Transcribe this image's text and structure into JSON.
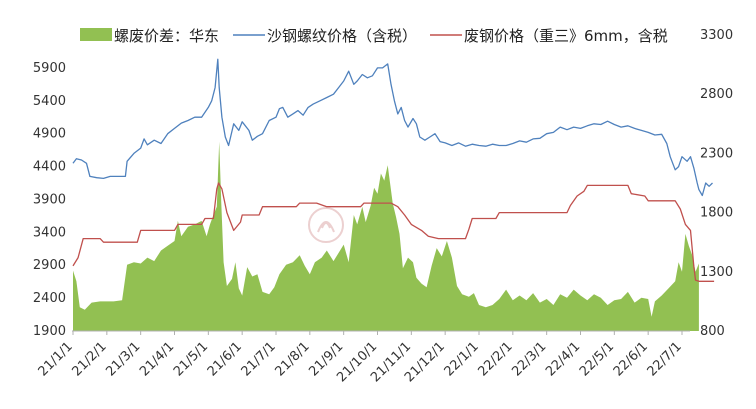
{
  "chart_data": {
    "type": "line",
    "legend_position": "top",
    "grid": false,
    "watermark": "资讯",
    "x_ticks": [
      "21/1/1",
      "21/2/1",
      "21/3/1",
      "21/4/1",
      "21/5/1",
      "21/6/1",
      "21/7/1",
      "21/8/1",
      "21/9/1",
      "21/10/1",
      "21/11/1",
      "21/12/1",
      "22/1/1",
      "22/2/1",
      "22/3/1",
      "22/4/1",
      "22/5/1",
      "22/6/1",
      "22/7/1"
    ],
    "y_left": {
      "range": [
        1900,
        6400
      ],
      "ticks": [
        1900,
        2400,
        2900,
        3400,
        3900,
        4400,
        4900,
        5400,
        5900
      ]
    },
    "y_right": {
      "range": [
        800,
        3300
      ],
      "ticks": [
        800,
        1300,
        1800,
        2300,
        2800,
        3300
      ]
    },
    "series": [
      {
        "name": "螺废价差：华东",
        "kind": "area",
        "axis": "right",
        "color": "#92c052",
        "points": [
          [
            0.0,
            1310
          ],
          [
            0.1,
            1220
          ],
          [
            0.2,
            1000
          ],
          [
            0.35,
            980
          ],
          [
            0.55,
            1040
          ],
          [
            0.8,
            1050
          ],
          [
            1.0,
            1050
          ],
          [
            1.2,
            1050
          ],
          [
            1.45,
            1060
          ],
          [
            1.6,
            1360
          ],
          [
            1.8,
            1380
          ],
          [
            2.0,
            1370
          ],
          [
            2.2,
            1420
          ],
          [
            2.4,
            1390
          ],
          [
            2.6,
            1480
          ],
          [
            2.8,
            1520
          ],
          [
            3.0,
            1560
          ],
          [
            3.1,
            1730
          ],
          [
            3.2,
            1600
          ],
          [
            3.4,
            1680
          ],
          [
            3.6,
            1700
          ],
          [
            3.8,
            1730
          ],
          [
            3.95,
            1600
          ],
          [
            4.05,
            1700
          ],
          [
            4.15,
            1780
          ],
          [
            4.25,
            1850
          ],
          [
            4.32,
            2400
          ],
          [
            4.38,
            1900
          ],
          [
            4.45,
            1380
          ],
          [
            4.55,
            1180
          ],
          [
            4.7,
            1240
          ],
          [
            4.8,
            1380
          ],
          [
            4.9,
            1160
          ],
          [
            5.0,
            1100
          ],
          [
            5.15,
            1340
          ],
          [
            5.3,
            1260
          ],
          [
            5.45,
            1280
          ],
          [
            5.6,
            1130
          ],
          [
            5.8,
            1110
          ],
          [
            5.95,
            1170
          ],
          [
            6.1,
            1280
          ],
          [
            6.3,
            1360
          ],
          [
            6.5,
            1380
          ],
          [
            6.7,
            1440
          ],
          [
            6.85,
            1350
          ],
          [
            7.0,
            1280
          ],
          [
            7.15,
            1380
          ],
          [
            7.35,
            1420
          ],
          [
            7.5,
            1480
          ],
          [
            7.7,
            1390
          ],
          [
            7.85,
            1460
          ],
          [
            8.0,
            1530
          ],
          [
            8.15,
            1380
          ],
          [
            8.3,
            1780
          ],
          [
            8.4,
            1700
          ],
          [
            8.55,
            1850
          ],
          [
            8.65,
            1720
          ],
          [
            8.8,
            1860
          ],
          [
            8.9,
            2010
          ],
          [
            9.0,
            1960
          ],
          [
            9.1,
            2130
          ],
          [
            9.2,
            2070
          ],
          [
            9.3,
            2200
          ],
          [
            9.45,
            1880
          ],
          [
            9.55,
            1760
          ],
          [
            9.65,
            1620
          ],
          [
            9.75,
            1330
          ],
          [
            9.9,
            1420
          ],
          [
            10.05,
            1380
          ],
          [
            10.15,
            1250
          ],
          [
            10.3,
            1200
          ],
          [
            10.45,
            1170
          ],
          [
            10.6,
            1350
          ],
          [
            10.75,
            1500
          ],
          [
            10.9,
            1430
          ],
          [
            11.05,
            1560
          ],
          [
            11.2,
            1420
          ],
          [
            11.35,
            1180
          ],
          [
            11.5,
            1110
          ],
          [
            11.7,
            1090
          ],
          [
            11.85,
            1120
          ],
          [
            12.0,
            1020
          ],
          [
            12.2,
            1000
          ],
          [
            12.4,
            1020
          ],
          [
            12.6,
            1070
          ],
          [
            12.8,
            1150
          ],
          [
            13.0,
            1060
          ],
          [
            13.2,
            1100
          ],
          [
            13.4,
            1060
          ],
          [
            13.6,
            1120
          ],
          [
            13.8,
            1040
          ],
          [
            14.0,
            1070
          ],
          [
            14.2,
            1020
          ],
          [
            14.4,
            1110
          ],
          [
            14.6,
            1080
          ],
          [
            14.8,
            1150
          ],
          [
            15.0,
            1100
          ],
          [
            15.2,
            1060
          ],
          [
            15.4,
            1110
          ],
          [
            15.6,
            1080
          ],
          [
            15.8,
            1020
          ],
          [
            16.0,
            1060
          ],
          [
            16.2,
            1070
          ],
          [
            16.4,
            1130
          ],
          [
            16.6,
            1040
          ],
          [
            16.8,
            1080
          ],
          [
            17.0,
            1070
          ],
          [
            17.1,
            920
          ],
          [
            17.2,
            1050
          ],
          [
            17.4,
            1100
          ],
          [
            17.6,
            1160
          ],
          [
            17.8,
            1220
          ],
          [
            17.9,
            1380
          ],
          [
            18.0,
            1300
          ],
          [
            18.1,
            1620
          ],
          [
            18.2,
            1520
          ],
          [
            18.3,
            1440
          ],
          [
            18.4,
            1300
          ],
          [
            18.5,
            1370
          ]
        ]
      },
      {
        "name": "沙钢螺纹价格（含税）",
        "kind": "line",
        "axis": "left",
        "color": "#4f81bd",
        "points": [
          [
            0.0,
            4450
          ],
          [
            0.1,
            4520
          ],
          [
            0.25,
            4500
          ],
          [
            0.4,
            4450
          ],
          [
            0.5,
            4250
          ],
          [
            0.7,
            4230
          ],
          [
            0.9,
            4220
          ],
          [
            1.1,
            4250
          ],
          [
            1.3,
            4250
          ],
          [
            1.55,
            4250
          ],
          [
            1.6,
            4480
          ],
          [
            1.8,
            4600
          ],
          [
            2.0,
            4680
          ],
          [
            2.1,
            4820
          ],
          [
            2.2,
            4730
          ],
          [
            2.4,
            4800
          ],
          [
            2.6,
            4750
          ],
          [
            2.8,
            4900
          ],
          [
            3.0,
            4980
          ],
          [
            3.2,
            5060
          ],
          [
            3.4,
            5100
          ],
          [
            3.6,
            5150
          ],
          [
            3.8,
            5150
          ],
          [
            4.0,
            5300
          ],
          [
            4.1,
            5400
          ],
          [
            4.2,
            5600
          ],
          [
            4.28,
            6030
          ],
          [
            4.32,
            5600
          ],
          [
            4.4,
            5150
          ],
          [
            4.5,
            4850
          ],
          [
            4.6,
            4720
          ],
          [
            4.75,
            5050
          ],
          [
            4.9,
            4950
          ],
          [
            5.0,
            5080
          ],
          [
            5.2,
            4950
          ],
          [
            5.3,
            4800
          ],
          [
            5.45,
            4860
          ],
          [
            5.6,
            4900
          ],
          [
            5.8,
            5100
          ],
          [
            6.0,
            5150
          ],
          [
            6.1,
            5280
          ],
          [
            6.2,
            5300
          ],
          [
            6.35,
            5150
          ],
          [
            6.5,
            5200
          ],
          [
            6.65,
            5250
          ],
          [
            6.8,
            5180
          ],
          [
            6.95,
            5300
          ],
          [
            7.1,
            5350
          ],
          [
            7.3,
            5400
          ],
          [
            7.5,
            5450
          ],
          [
            7.7,
            5500
          ],
          [
            7.85,
            5600
          ],
          [
            8.0,
            5700
          ],
          [
            8.15,
            5850
          ],
          [
            8.3,
            5650
          ],
          [
            8.4,
            5700
          ],
          [
            8.55,
            5800
          ],
          [
            8.7,
            5750
          ],
          [
            8.85,
            5780
          ],
          [
            9.0,
            5900
          ],
          [
            9.15,
            5900
          ],
          [
            9.3,
            5960
          ],
          [
            9.4,
            5650
          ],
          [
            9.5,
            5400
          ],
          [
            9.6,
            5200
          ],
          [
            9.7,
            5300
          ],
          [
            9.8,
            5100
          ],
          [
            9.9,
            5000
          ],
          [
            10.05,
            5130
          ],
          [
            10.15,
            5050
          ],
          [
            10.25,
            4850
          ],
          [
            10.4,
            4800
          ],
          [
            10.55,
            4850
          ],
          [
            10.7,
            4900
          ],
          [
            10.85,
            4780
          ],
          [
            11.0,
            4760
          ],
          [
            11.2,
            4720
          ],
          [
            11.4,
            4760
          ],
          [
            11.6,
            4710
          ],
          [
            11.8,
            4740
          ],
          [
            12.0,
            4720
          ],
          [
            12.2,
            4710
          ],
          [
            12.4,
            4740
          ],
          [
            12.6,
            4720
          ],
          [
            12.8,
            4720
          ],
          [
            13.0,
            4750
          ],
          [
            13.2,
            4790
          ],
          [
            13.4,
            4770
          ],
          [
            13.6,
            4820
          ],
          [
            13.8,
            4830
          ],
          [
            14.0,
            4900
          ],
          [
            14.2,
            4920
          ],
          [
            14.4,
            5000
          ],
          [
            14.6,
            4960
          ],
          [
            14.8,
            5000
          ],
          [
            15.0,
            4980
          ],
          [
            15.2,
            5020
          ],
          [
            15.4,
            5050
          ],
          [
            15.6,
            5040
          ],
          [
            15.8,
            5090
          ],
          [
            16.0,
            5040
          ],
          [
            16.2,
            5000
          ],
          [
            16.4,
            5020
          ],
          [
            16.6,
            4980
          ],
          [
            16.8,
            4950
          ],
          [
            17.0,
            4920
          ],
          [
            17.2,
            4880
          ],
          [
            17.4,
            4890
          ],
          [
            17.55,
            4750
          ],
          [
            17.65,
            4550
          ],
          [
            17.8,
            4350
          ],
          [
            17.9,
            4400
          ],
          [
            18.0,
            4550
          ],
          [
            18.15,
            4480
          ],
          [
            18.25,
            4550
          ],
          [
            18.35,
            4380
          ],
          [
            18.45,
            4150
          ],
          [
            18.5,
            4050
          ],
          [
            18.6,
            3960
          ],
          [
            18.7,
            4150
          ],
          [
            18.8,
            4100
          ],
          [
            18.9,
            4150
          ]
        ]
      },
      {
        "name": "废钢价格（重三》6mm，含税",
        "kind": "line",
        "axis": "right",
        "color": "#c0504d",
        "points": [
          [
            0.0,
            1350
          ],
          [
            0.15,
            1420
          ],
          [
            0.3,
            1580
          ],
          [
            0.8,
            1580
          ],
          [
            0.9,
            1550
          ],
          [
            1.9,
            1550
          ],
          [
            2.0,
            1650
          ],
          [
            3.0,
            1650
          ],
          [
            3.1,
            1700
          ],
          [
            3.8,
            1700
          ],
          [
            3.9,
            1750
          ],
          [
            4.15,
            1750
          ],
          [
            4.25,
            2000
          ],
          [
            4.3,
            2050
          ],
          [
            4.4,
            2000
          ],
          [
            4.55,
            1800
          ],
          [
            4.75,
            1650
          ],
          [
            4.95,
            1720
          ],
          [
            5.0,
            1780
          ],
          [
            5.5,
            1780
          ],
          [
            5.6,
            1850
          ],
          [
            6.6,
            1850
          ],
          [
            6.7,
            1880
          ],
          [
            7.2,
            1880
          ],
          [
            7.5,
            1850
          ],
          [
            8.5,
            1850
          ],
          [
            8.6,
            1880
          ],
          [
            9.4,
            1880
          ],
          [
            9.6,
            1850
          ],
          [
            9.8,
            1780
          ],
          [
            10.0,
            1700
          ],
          [
            10.3,
            1650
          ],
          [
            10.5,
            1600
          ],
          [
            10.8,
            1580
          ],
          [
            11.6,
            1580
          ],
          [
            11.7,
            1660
          ],
          [
            11.8,
            1750
          ],
          [
            12.5,
            1750
          ],
          [
            12.6,
            1800
          ],
          [
            14.6,
            1800
          ],
          [
            14.7,
            1860
          ],
          [
            14.9,
            1940
          ],
          [
            15.1,
            1980
          ],
          [
            15.2,
            2030
          ],
          [
            16.4,
            2030
          ],
          [
            16.5,
            1960
          ],
          [
            16.9,
            1940
          ],
          [
            17.0,
            1900
          ],
          [
            17.8,
            1900
          ],
          [
            17.95,
            1830
          ],
          [
            18.1,
            1700
          ],
          [
            18.25,
            1650
          ],
          [
            18.35,
            1350
          ],
          [
            18.4,
            1230
          ],
          [
            18.5,
            1220
          ],
          [
            18.95,
            1220
          ]
        ]
      }
    ]
  }
}
